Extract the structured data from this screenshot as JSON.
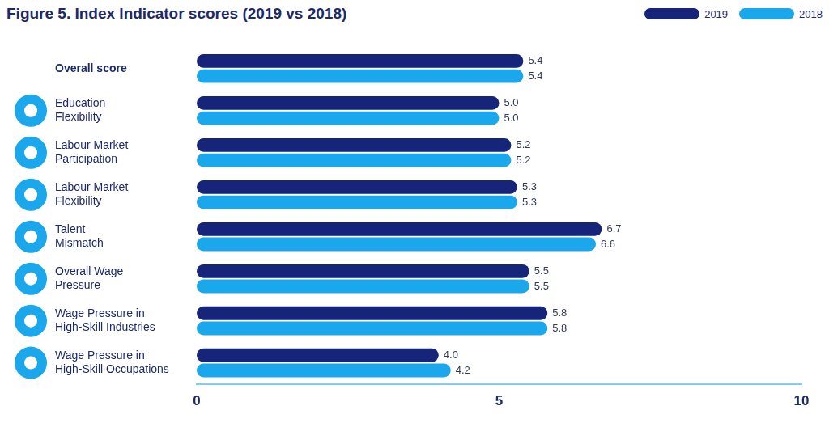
{
  "chart_data": {
    "type": "bar",
    "title": "Figure 5. Index Indicator scores (2019 vs 2018)",
    "orientation": "horizontal",
    "categories": [
      "Overall score",
      "Education\nFlexibility",
      "Labour Market\nParticipation",
      "Labour Market\nFlexibility",
      "Talent\nMismatch",
      "Overall Wage\nPressure",
      "Wage Pressure in\nHigh-Skill Industries",
      "Wage Pressure in\nHigh-Skill Occupations"
    ],
    "series": [
      {
        "name": "2019",
        "color": "#16257a",
        "values": [
          5.4,
          5.0,
          5.2,
          5.3,
          6.7,
          5.5,
          5.8,
          4.0
        ],
        "value_labels": [
          "5.4",
          "5.0",
          "5.2",
          "5.3",
          "6.7",
          "5.5",
          "5.8",
          "4.0"
        ]
      },
      {
        "name": "2018",
        "color": "#1aa7ec",
        "values": [
          5.4,
          5.0,
          5.2,
          5.3,
          6.6,
          5.5,
          5.8,
          4.2
        ],
        "value_labels": [
          "5.4",
          "5.0",
          "5.2",
          "5.3",
          "6.6",
          "5.5",
          "5.8",
          "4.2"
        ]
      }
    ],
    "xlim": [
      0,
      10
    ],
    "xticks": [
      0,
      5,
      10
    ],
    "grid": false,
    "legend": "top-right",
    "data_labels": true
  }
}
